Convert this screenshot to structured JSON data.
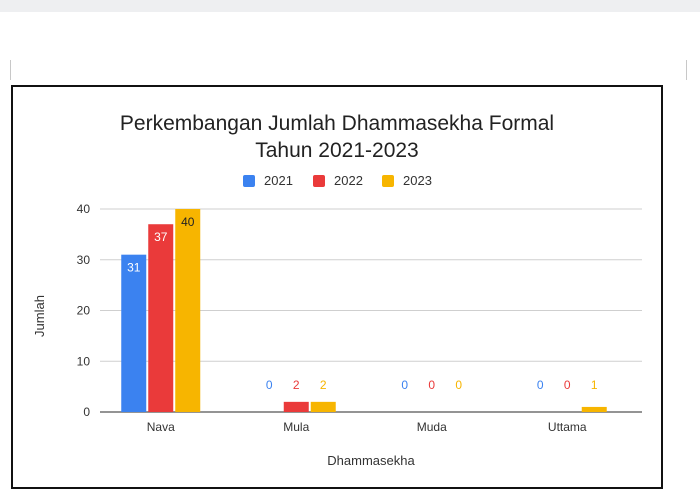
{
  "chart_data": {
    "type": "bar",
    "title": "Perkembangan Jumlah Dhammasekha Formal",
    "subtitle": "Tahun 2021-2023",
    "xlabel": "Dhammasekha",
    "ylabel": "Jumlah",
    "categories": [
      "Nava",
      "Mula",
      "Muda",
      "Uttama"
    ],
    "series": [
      {
        "name": "2021",
        "color": "#3b82f0",
        "values": [
          31,
          0,
          0,
          0
        ]
      },
      {
        "name": "2022",
        "color": "#ea3a3a",
        "values": [
          37,
          2,
          0,
          0
        ]
      },
      {
        "name": "2023",
        "color": "#f7b500",
        "values": [
          40,
          2,
          0,
          1
        ]
      }
    ],
    "ylim": [
      0,
      40
    ],
    "yticks": [
      0,
      10,
      20,
      30,
      40
    ],
    "grid": true,
    "legend_position": "top-center",
    "data_labels": true
  }
}
